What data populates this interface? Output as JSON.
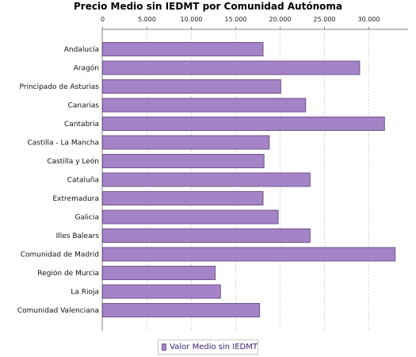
{
  "chart_data": {
    "type": "bar",
    "orientation": "horizontal",
    "title": "Precio Medio sin IEDMT por Comunidad Autónoma",
    "categories": [
      "Andalucía",
      "Aragón",
      "Principado de Asturias",
      "Canarias",
      "Cantabria",
      "Castilla - La Mancha",
      "Castilla y León",
      "Cataluña",
      "Extremadura",
      "Galicia",
      "Illes Balears",
      "Comunidad de Madrid",
      "Región de Murcia",
      "La Rioja",
      "Comunidad Valenciana"
    ],
    "series": [
      {
        "name": "Valor Medio sin IEDMT",
        "values": [
          18100,
          29000,
          20100,
          22900,
          31800,
          18800,
          18200,
          23400,
          18100,
          19800,
          23400,
          33000,
          12700,
          13300,
          17700
        ]
      }
    ],
    "xlim": [
      0,
      34500
    ],
    "x_ticks": [
      "0",
      "5.000",
      "10.000",
      "15.000",
      "20.000",
      "25.000",
      "30.000"
    ],
    "x_tick_values": [
      0,
      5000,
      10000,
      15000,
      20000,
      25000,
      30000
    ],
    "axis_position": "top",
    "grid": true,
    "legend_position": "bottom-center",
    "colors": {
      "bar_fill": "#a483c7",
      "bar_stroke": "#6f5591",
      "grid": "#d4d4d4",
      "axis": "#808080"
    }
  },
  "legend": {
    "label": "Valor Medio sin IEDMT"
  }
}
